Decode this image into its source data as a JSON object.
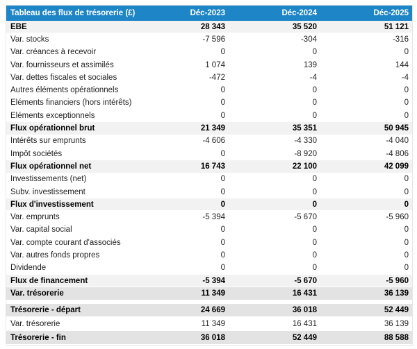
{
  "colors": {
    "header_bg": "#1e85c6",
    "header_text": "#ffffff",
    "subtotal_bg": "#f2f2f2",
    "total_bg": "#e3e3e3",
    "text": "#222222"
  },
  "chart_data": {
    "type": "table",
    "title": "Tableau des flux de trésorerie (£)",
    "currency": "£",
    "columns": [
      "Déc-2023",
      "Déc-2024",
      "Déc-2025"
    ],
    "rows": [
      {
        "label": "EBE",
        "values": [
          "28 343",
          "35 520",
          "51 121"
        ],
        "style": "subtotal"
      },
      {
        "label": "Var. stocks",
        "values": [
          "-7 596",
          "-304",
          "-316"
        ],
        "style": "normal"
      },
      {
        "label": "Var. créances à recevoir",
        "values": [
          "0",
          "0",
          "0"
        ],
        "style": "normal"
      },
      {
        "label": "Var. fournisseurs et assimilés",
        "values": [
          "1 074",
          "139",
          "144"
        ],
        "style": "normal"
      },
      {
        "label": "Var. dettes fiscales et sociales",
        "values": [
          "-472",
          "-4",
          "-4"
        ],
        "style": "normal"
      },
      {
        "label": "Autres éléments opérationnels",
        "values": [
          "0",
          "0",
          "0"
        ],
        "style": "normal"
      },
      {
        "label": "Eléments financiers (hors intérêts)",
        "values": [
          "0",
          "0",
          "0"
        ],
        "style": "normal"
      },
      {
        "label": "Eléments exceptionnels",
        "values": [
          "0",
          "0",
          "0"
        ],
        "style": "normal"
      },
      {
        "label": "Flux opérationnel brut",
        "values": [
          "21 349",
          "35 351",
          "50 945"
        ],
        "style": "subtotal"
      },
      {
        "label": "Intérêts sur emprunts",
        "values": [
          "-4 606",
          "-4 330",
          "-4 040"
        ],
        "style": "normal"
      },
      {
        "label": "Impôt sociétés",
        "values": [
          "0",
          "-8 920",
          "-4 806"
        ],
        "style": "normal"
      },
      {
        "label": "Flux opérationnel net",
        "values": [
          "16 743",
          "22 100",
          "42 099"
        ],
        "style": "subtotal"
      },
      {
        "label": "Investissements (net)",
        "values": [
          "0",
          "0",
          "0"
        ],
        "style": "normal"
      },
      {
        "label": "Subv. investissement",
        "values": [
          "0",
          "0",
          "0"
        ],
        "style": "normal"
      },
      {
        "label": "Flux d'investissement",
        "values": [
          "0",
          "0",
          "0"
        ],
        "style": "subtotal"
      },
      {
        "label": "Var. emprunts",
        "values": [
          "-5 394",
          "-5 670",
          "-5 960"
        ],
        "style": "normal"
      },
      {
        "label": "Var. capital social",
        "values": [
          "0",
          "0",
          "0"
        ],
        "style": "normal"
      },
      {
        "label": "Var. compte courant d'associés",
        "values": [
          "0",
          "0",
          "0"
        ],
        "style": "normal"
      },
      {
        "label": "Var. autres fonds propres",
        "values": [
          "0",
          "0",
          "0"
        ],
        "style": "normal"
      },
      {
        "label": "Dividende",
        "values": [
          "0",
          "0",
          "0"
        ],
        "style": "normal"
      },
      {
        "label": "Flux de financement",
        "values": [
          "-5 394",
          "-5 670",
          "-5 960"
        ],
        "style": "subtotal"
      },
      {
        "label": "Var. trésorerie",
        "values": [
          "11 349",
          "16 431",
          "36 139"
        ],
        "style": "total"
      },
      {
        "label": "Trésorerie - départ",
        "values": [
          "24 669",
          "36 018",
          "52 449"
        ],
        "style": "total",
        "gap_before": true
      },
      {
        "label": "Var. trésorerie",
        "values": [
          "11 349",
          "16 431",
          "36 139"
        ],
        "style": "normal"
      },
      {
        "label": "Trésorerie - fin",
        "values": [
          "36 018",
          "52 449",
          "88 588"
        ],
        "style": "total"
      }
    ]
  }
}
